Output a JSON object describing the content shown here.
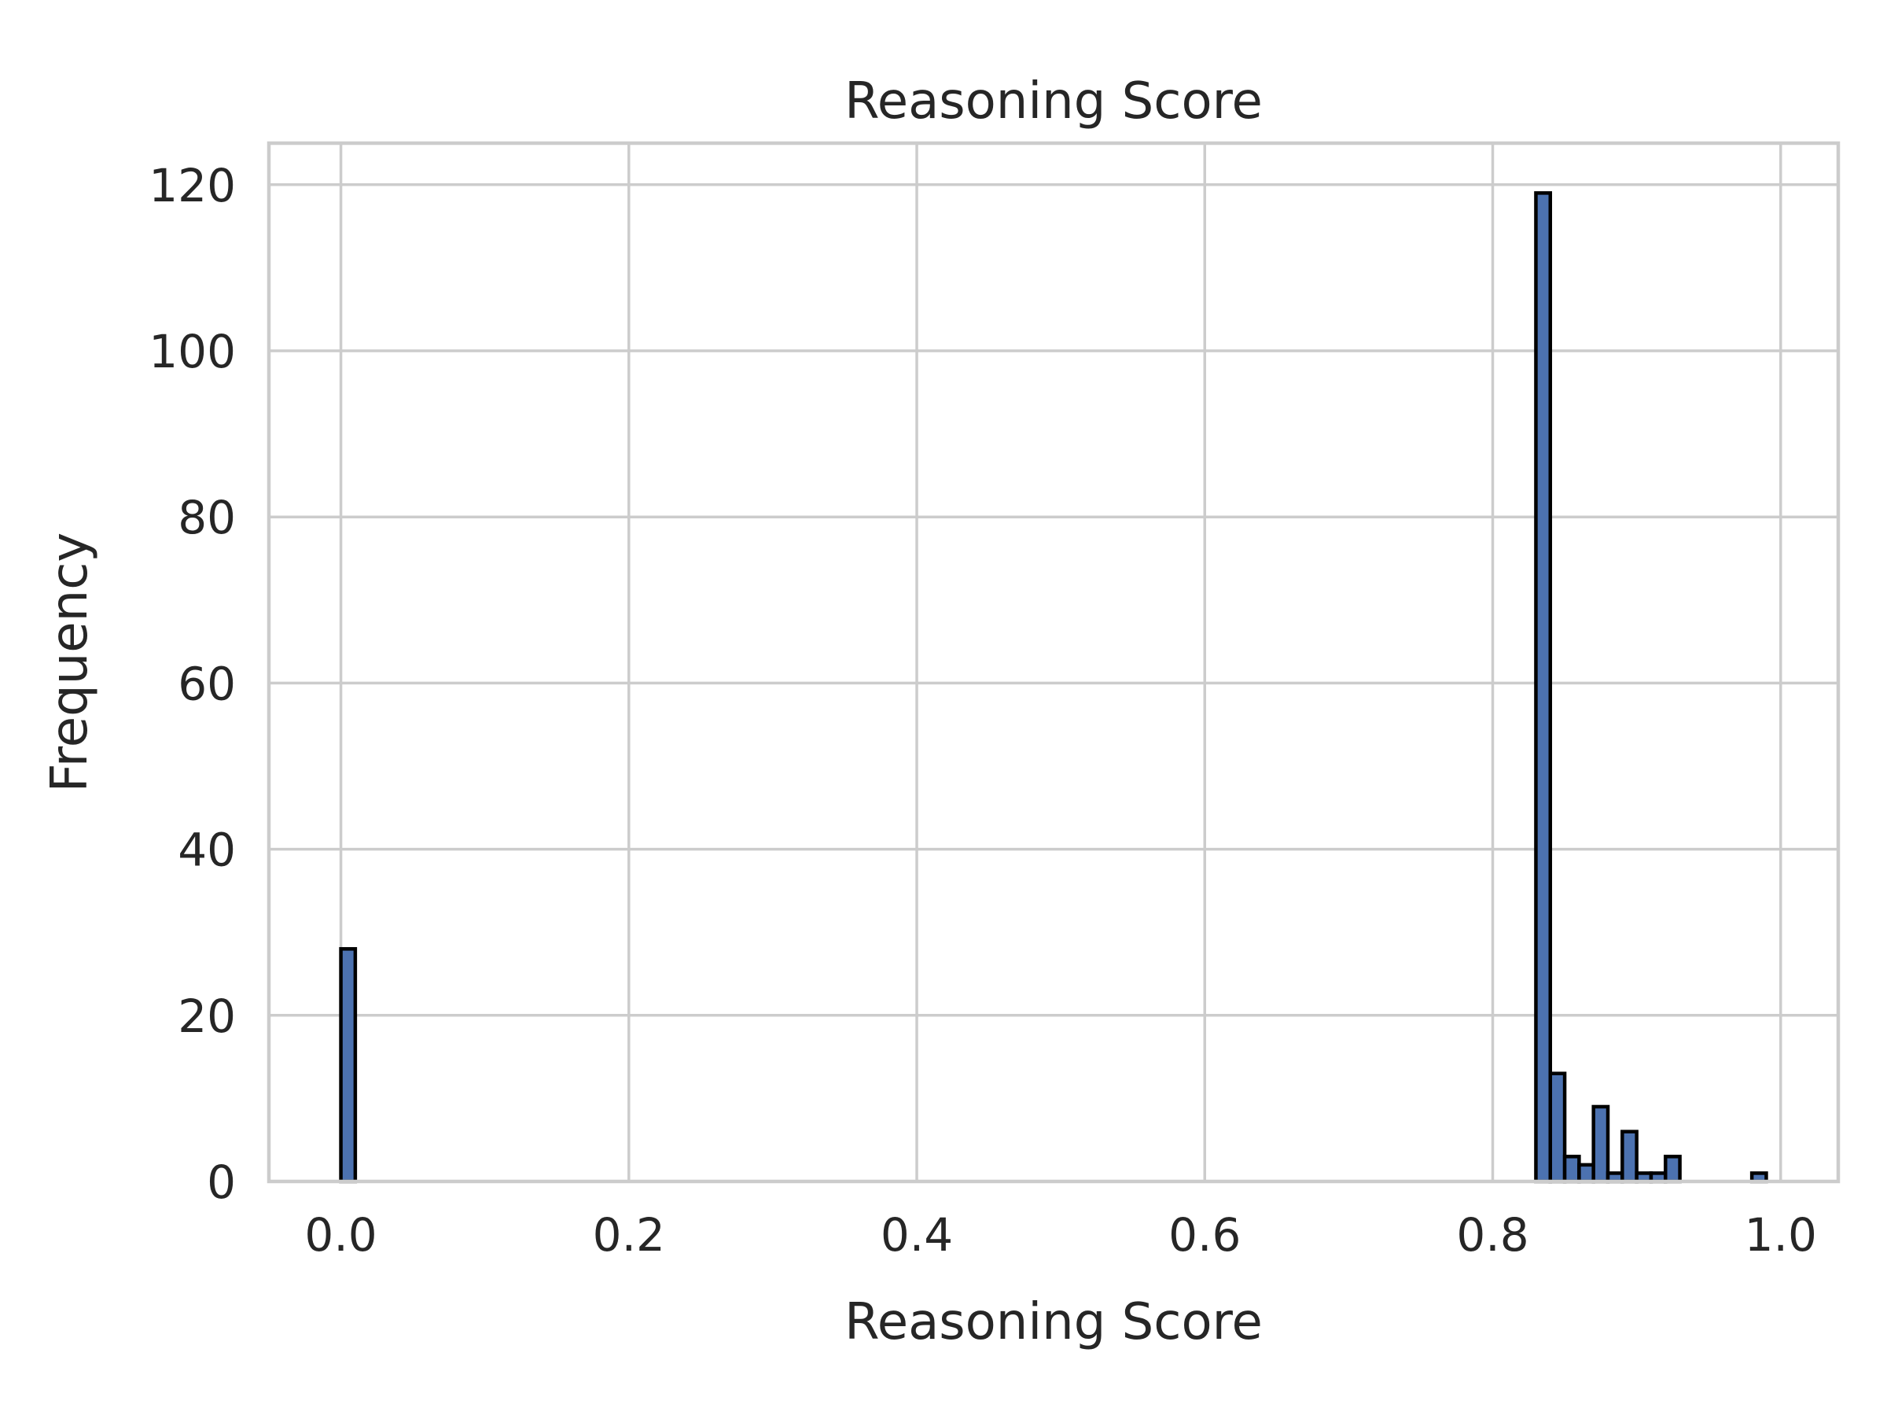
{
  "chart_data": {
    "type": "bar",
    "title": "Reasoning Score",
    "xlabel": "Reasoning Score",
    "ylabel": "Frequency",
    "xlim": [
      -0.05,
      1.04
    ],
    "ylim": [
      0,
      125
    ],
    "grid": true,
    "x_ticks": [
      "0.0",
      "0.2",
      "0.4",
      "0.6",
      "0.8",
      "1.0"
    ],
    "y_ticks": [
      "0",
      "20",
      "40",
      "60",
      "80",
      "100",
      "120"
    ],
    "bin_width": 0.01,
    "bars": [
      {
        "x": 0.0,
        "value": 28
      },
      {
        "x": 0.83,
        "value": 119
      },
      {
        "x": 0.84,
        "value": 13
      },
      {
        "x": 0.85,
        "value": 3
      },
      {
        "x": 0.86,
        "value": 2
      },
      {
        "x": 0.87,
        "value": 9
      },
      {
        "x": 0.88,
        "value": 1
      },
      {
        "x": 0.89,
        "value": 6
      },
      {
        "x": 0.9,
        "value": 1
      },
      {
        "x": 0.91,
        "value": 1
      },
      {
        "x": 0.92,
        "value": 3
      },
      {
        "x": 0.98,
        "value": 1
      }
    ]
  }
}
